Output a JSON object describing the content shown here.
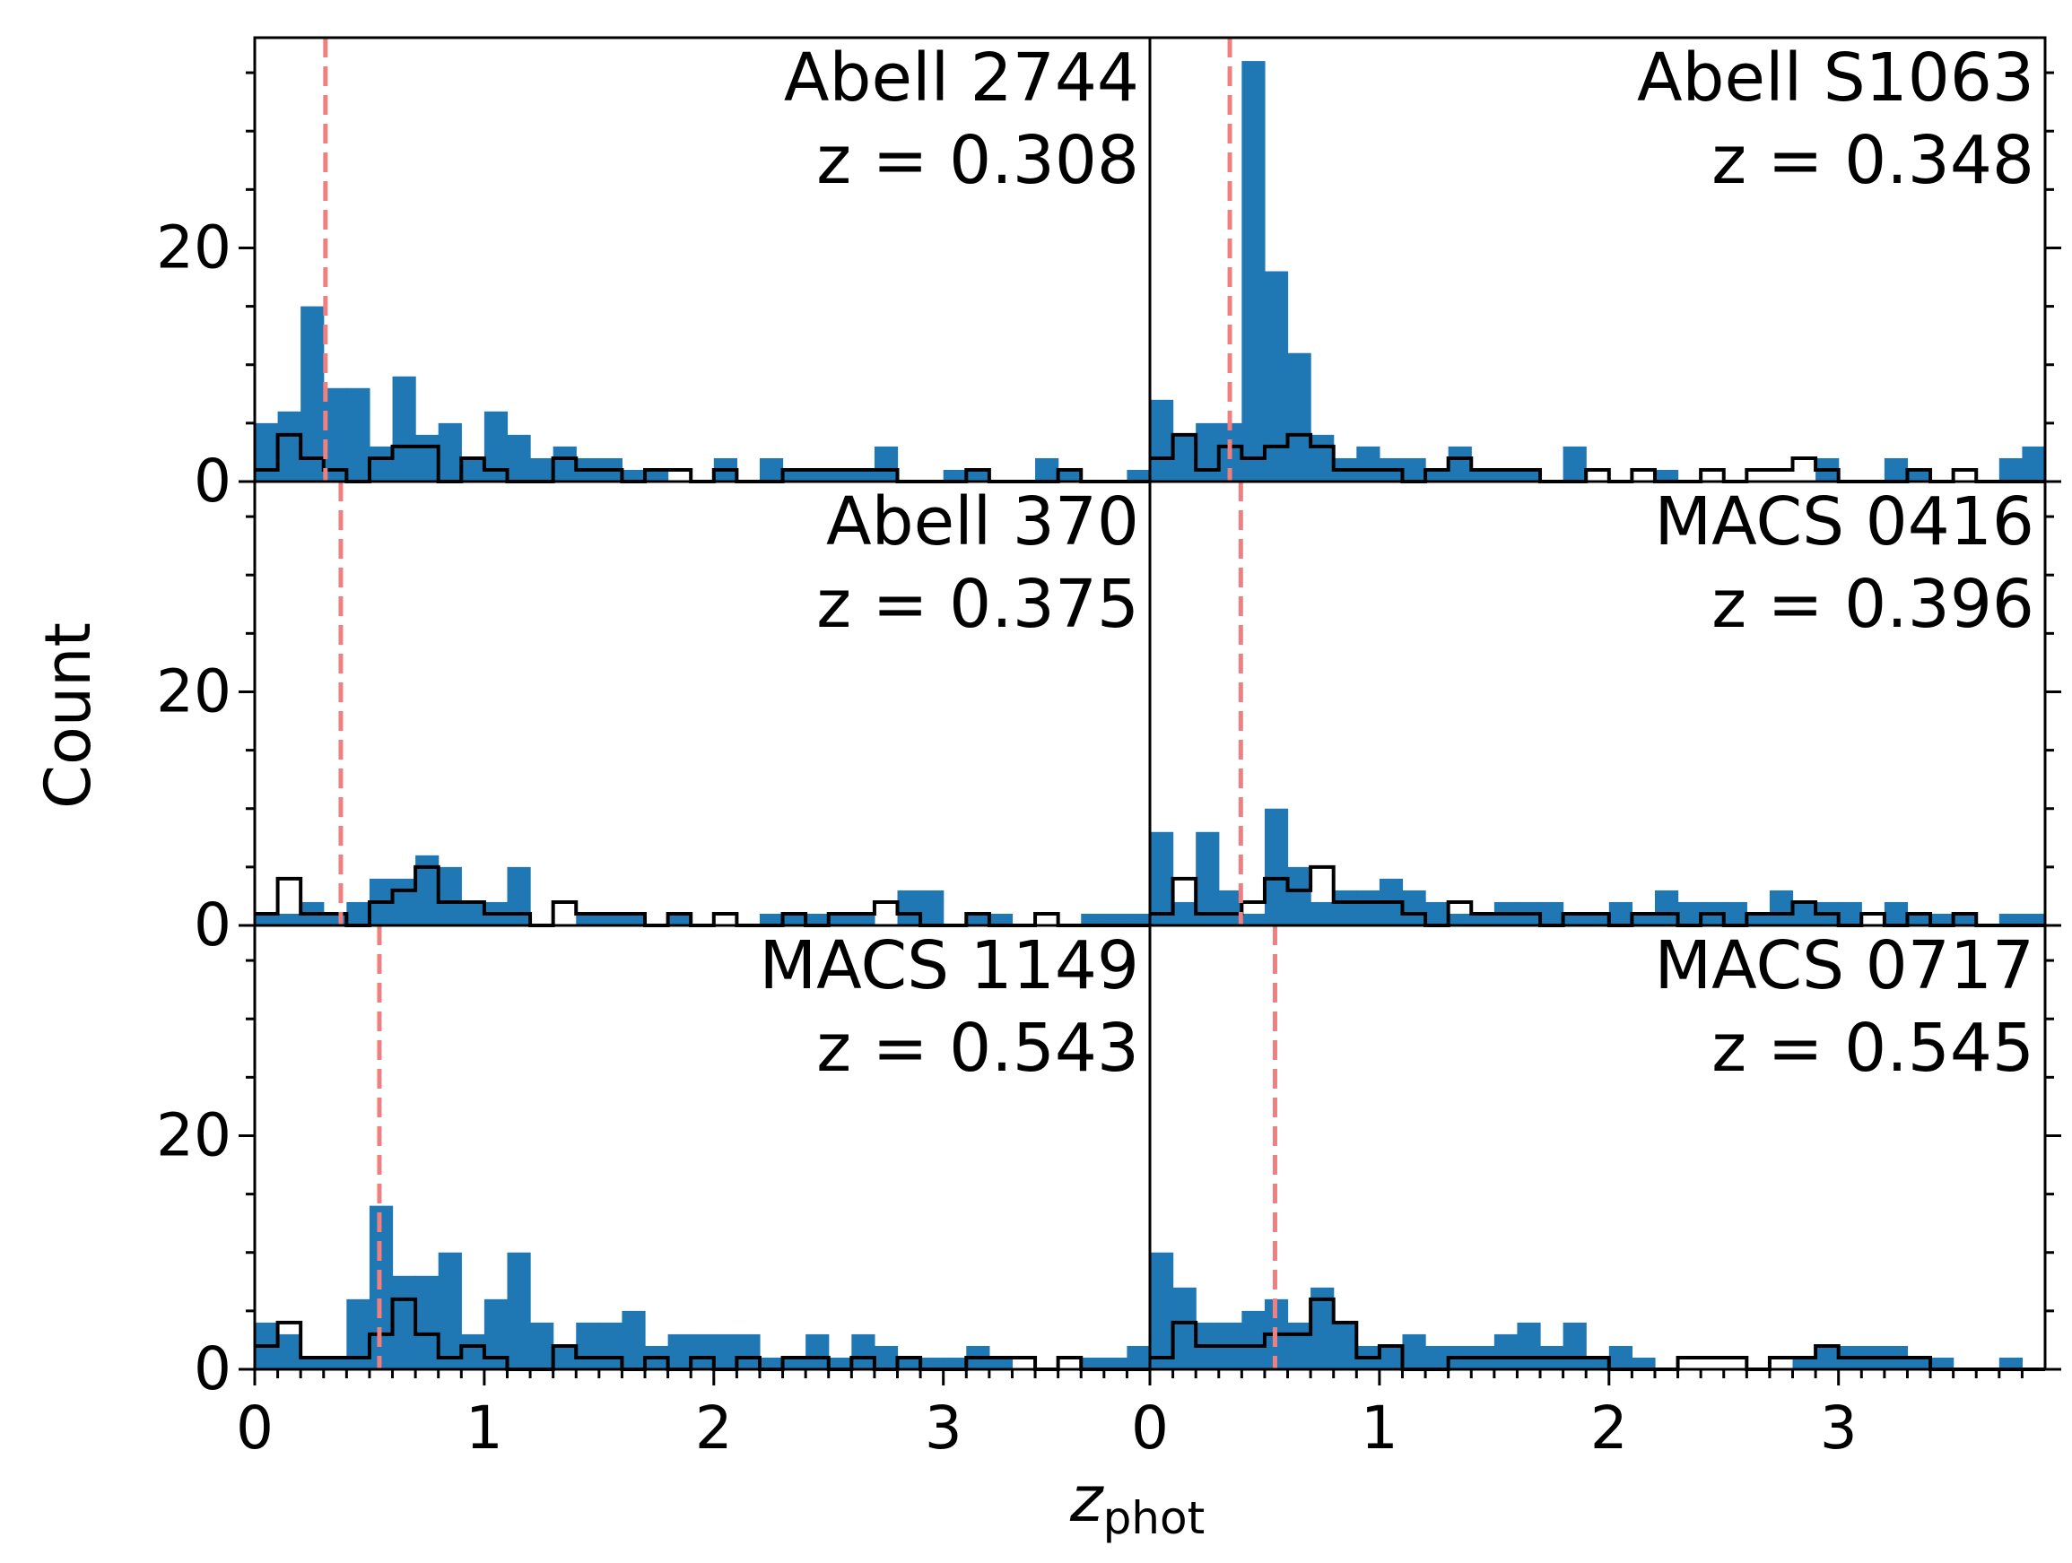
{
  "figure": {
    "xlabel_main": "z",
    "xlabel_sub": "phot",
    "ylabel": "Count"
  },
  "colors": {
    "bar_fill": "#1f77b4",
    "step_line": "#000000",
    "cluster_line": "#f08080"
  },
  "chart_data": {
    "type": "bar",
    "layout": "3 rows x 2 columns, shared axes",
    "bin_width": 0.1,
    "xlim": [
      0,
      3.9
    ],
    "ylim": [
      0,
      38
    ],
    "xticks": [
      0,
      1,
      2,
      3
    ],
    "yticks": [
      0,
      20
    ],
    "panels": [
      {
        "name": "Abell 2744",
        "z_label": "z = 0.308",
        "z_cluster": 0.308,
        "filled_values": [
          5,
          6,
          15,
          8,
          8,
          3,
          9,
          4,
          5,
          2,
          6,
          4,
          2,
          3,
          2,
          2,
          1,
          1,
          0,
          0,
          2,
          0,
          2,
          1,
          1,
          1,
          1,
          3,
          0,
          0,
          1,
          1,
          0,
          0,
          2,
          1,
          0,
          0,
          1
        ],
        "open_values": [
          1,
          4,
          2,
          1,
          0,
          2,
          3,
          3,
          0,
          2,
          1,
          0,
          0,
          2,
          1,
          1,
          0,
          1,
          1,
          0,
          1,
          0,
          0,
          1,
          1,
          1,
          1,
          1,
          0,
          0,
          0,
          1,
          0,
          0,
          0,
          1,
          0,
          0,
          0
        ]
      },
      {
        "name": "Abell S1063",
        "z_label": "z = 0.348",
        "z_cluster": 0.348,
        "filled_values": [
          7,
          4,
          5,
          5,
          36,
          18,
          11,
          4,
          2,
          3,
          2,
          2,
          1,
          3,
          1,
          1,
          1,
          0,
          3,
          0,
          0,
          0,
          1,
          0,
          0,
          0,
          0,
          0,
          0,
          2,
          0,
          0,
          2,
          1,
          0,
          0,
          0,
          2,
          3
        ],
        "open_values": [
          2,
          4,
          1,
          3,
          2,
          3,
          4,
          3,
          1,
          1,
          1,
          0,
          1,
          2,
          1,
          1,
          1,
          0,
          0,
          1,
          0,
          1,
          0,
          0,
          1,
          0,
          1,
          1,
          2,
          1,
          0,
          0,
          0,
          1,
          0,
          1,
          0,
          0,
          0
        ]
      },
      {
        "name": "Abell 370",
        "z_label": "z = 0.375",
        "z_cluster": 0.375,
        "filled_values": [
          1,
          1,
          2,
          1,
          2,
          4,
          4,
          6,
          5,
          2,
          2,
          5,
          0,
          0,
          1,
          1,
          1,
          0,
          1,
          0,
          0,
          0,
          1,
          1,
          1,
          1,
          1,
          0,
          3,
          3,
          0,
          1,
          1,
          0,
          0,
          0,
          1,
          1,
          1
        ],
        "open_values": [
          1,
          4,
          1,
          1,
          0,
          2,
          3,
          5,
          2,
          2,
          1,
          1,
          0,
          2,
          1,
          1,
          1,
          0,
          1,
          0,
          1,
          0,
          0,
          1,
          0,
          1,
          1,
          2,
          1,
          0,
          0,
          1,
          0,
          0,
          1,
          0,
          0,
          0,
          0
        ]
      },
      {
        "name": "MACS 0416",
        "z_label": "z = 0.396",
        "z_cluster": 0.396,
        "filled_values": [
          8,
          2,
          8,
          3,
          1,
          10,
          5,
          2,
          3,
          3,
          4,
          3,
          2,
          1,
          1,
          2,
          2,
          2,
          1,
          1,
          2,
          1,
          3,
          2,
          2,
          2,
          1,
          3,
          2,
          2,
          2,
          0,
          2,
          1,
          1,
          1,
          0,
          1,
          1
        ],
        "open_values": [
          1,
          4,
          1,
          1,
          2,
          4,
          3,
          5,
          2,
          2,
          2,
          1,
          0,
          2,
          1,
          1,
          1,
          0,
          1,
          1,
          0,
          1,
          1,
          0,
          1,
          0,
          1,
          1,
          2,
          1,
          0,
          1,
          0,
          1,
          0,
          1,
          0,
          0,
          0
        ]
      },
      {
        "name": "MACS 1149",
        "z_label": "z = 0.543",
        "z_cluster": 0.543,
        "filled_values": [
          4,
          3,
          1,
          1,
          6,
          14,
          8,
          8,
          10,
          3,
          6,
          10,
          4,
          2,
          4,
          4,
          5,
          2,
          3,
          3,
          3,
          3,
          1,
          1,
          3,
          1,
          3,
          2,
          1,
          1,
          1,
          2,
          1,
          0,
          0,
          0,
          1,
          1,
          2
        ],
        "open_values": [
          2,
          4,
          1,
          1,
          1,
          3,
          6,
          3,
          1,
          2,
          1,
          0,
          0,
          2,
          1,
          1,
          0,
          1,
          0,
          1,
          0,
          1,
          0,
          1,
          1,
          0,
          1,
          0,
          1,
          0,
          0,
          1,
          1,
          1,
          0,
          1,
          0,
          0,
          0
        ]
      },
      {
        "name": "MACS 0717",
        "z_label": "z = 0.545",
        "z_cluster": 0.545,
        "filled_values": [
          10,
          7,
          4,
          4,
          5,
          6,
          4,
          7,
          4,
          2,
          2,
          3,
          2,
          2,
          2,
          3,
          4,
          2,
          4,
          1,
          2,
          1,
          0,
          0,
          0,
          0,
          0,
          0,
          1,
          2,
          2,
          2,
          2,
          1,
          1,
          0,
          0,
          1,
          0
        ],
        "open_values": [
          1,
          4,
          2,
          2,
          2,
          3,
          3,
          6,
          4,
          1,
          2,
          0,
          0,
          1,
          1,
          1,
          1,
          1,
          1,
          1,
          0,
          0,
          0,
          1,
          1,
          1,
          0,
          1,
          1,
          2,
          1,
          1,
          1,
          1,
          0,
          0,
          0,
          0,
          0
        ]
      }
    ]
  }
}
